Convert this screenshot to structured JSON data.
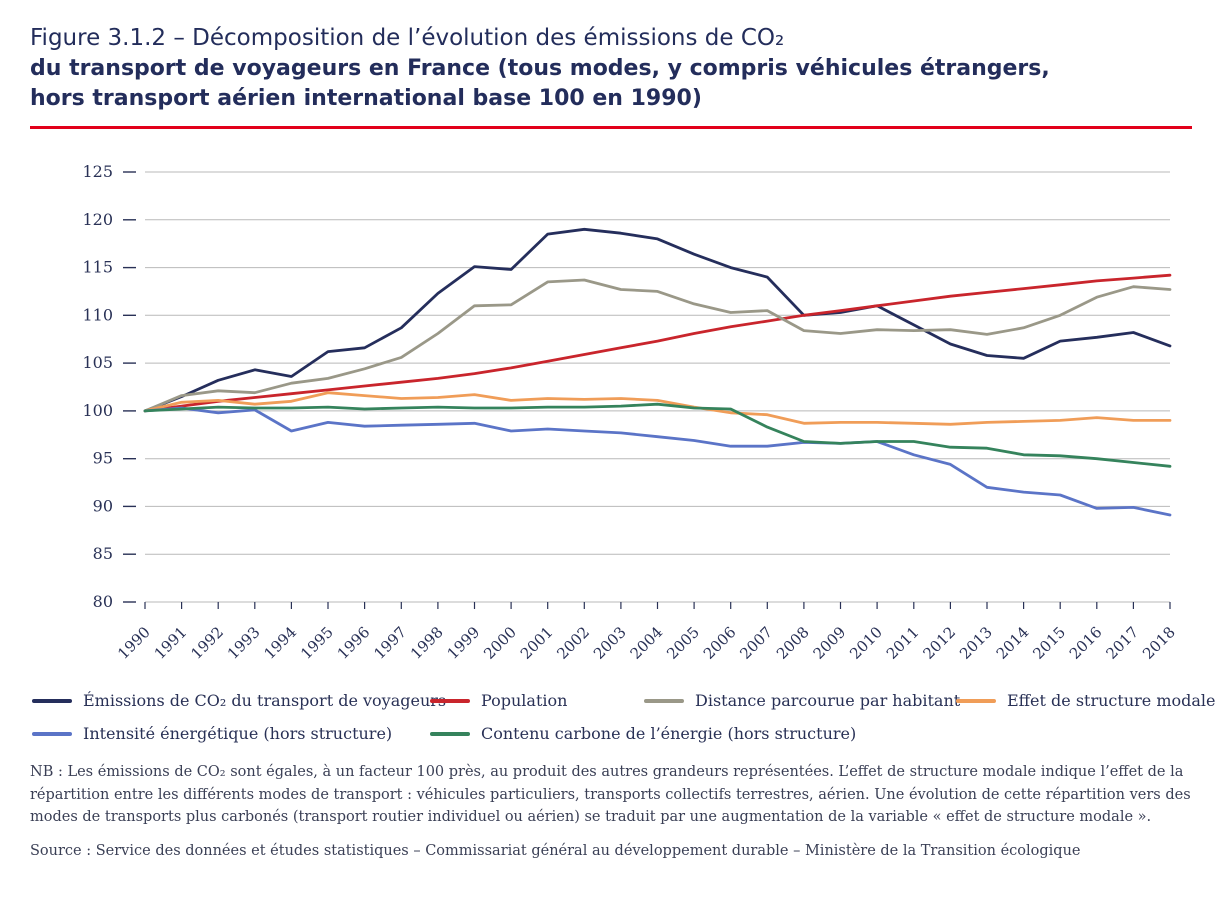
{
  "title": {
    "line1": "Figure 3.1.2 – Décomposition de l’évolution des émissions de CO₂",
    "line2": "du transport de voyageurs en France (tous modes, y compris véhicules étrangers,",
    "line3": "hors transport aérien international base 100 en 1990)"
  },
  "accent_colors": {
    "title_navy": "#232d5b",
    "rule_red": "#e2001a",
    "grid_gray": "#b9b9b9",
    "axis_text": "#293156"
  },
  "chart_data": {
    "type": "line",
    "title": "Décomposition de l’évolution des émissions de CO₂ du transport de voyageurs en France (base 100 en 1990)",
    "xlabel": "",
    "ylabel": "",
    "ylim": [
      80,
      125
    ],
    "ytick_step": 5,
    "grid": true,
    "legend_position": "bottom",
    "x": [
      1990,
      1991,
      1992,
      1993,
      1994,
      1995,
      1996,
      1997,
      1998,
      1999,
      2000,
      2001,
      2002,
      2003,
      2004,
      2005,
      2006,
      2007,
      2008,
      2009,
      2010,
      2011,
      2012,
      2013,
      2014,
      2015,
      2016,
      2017,
      2018
    ],
    "series": [
      {
        "name": "Émissions de CO₂ du transport de voyageurs",
        "color": "#252e5c",
        "values": [
          100,
          101.5,
          103.2,
          104.3,
          103.6,
          106.2,
          106.6,
          108.7,
          112.3,
          115.1,
          114.8,
          118.5,
          119.0,
          118.6,
          118.0,
          116.4,
          115.0,
          114.0,
          110.0,
          110.3,
          111.0,
          109.0,
          107.0,
          105.8,
          105.5,
          107.3,
          107.7,
          108.2,
          106.8
        ]
      },
      {
        "name": "Population",
        "color": "#c9252c",
        "values": [
          100,
          100.5,
          101.0,
          101.4,
          101.8,
          102.2,
          102.6,
          103.0,
          103.4,
          103.9,
          104.5,
          105.2,
          105.9,
          106.6,
          107.3,
          108.1,
          108.8,
          109.4,
          110.0,
          110.5,
          111.0,
          111.5,
          112.0,
          112.4,
          112.8,
          113.2,
          113.6,
          113.9,
          114.2
        ]
      },
      {
        "name": "Distance parcourue par habitant",
        "color": "#9a9888",
        "values": [
          100,
          101.6,
          102.1,
          101.9,
          102.9,
          103.4,
          104.4,
          105.6,
          108.1,
          111.0,
          111.1,
          113.5,
          113.7,
          112.7,
          112.5,
          111.2,
          110.3,
          110.5,
          108.4,
          108.1,
          108.5,
          108.4,
          108.5,
          108.0,
          108.7,
          110.0,
          111.9,
          113.0,
          112.7
        ]
      },
      {
        "name": "Effet de structure modale",
        "color": "#f09d58",
        "values": [
          100,
          100.9,
          101.1,
          100.7,
          101.0,
          101.9,
          101.6,
          101.3,
          101.4,
          101.7,
          101.1,
          101.3,
          101.2,
          101.3,
          101.1,
          100.4,
          99.8,
          99.6,
          98.7,
          98.8,
          98.8,
          98.7,
          98.6,
          98.8,
          98.9,
          99.0,
          99.3,
          99.0,
          99.0
        ]
      },
      {
        "name": "Intensité énergétique (hors structure)",
        "color": "#5b74c7",
        "values": [
          100,
          100.3,
          99.8,
          100.1,
          97.9,
          98.8,
          98.4,
          98.5,
          98.6,
          98.7,
          97.9,
          98.1,
          97.9,
          97.7,
          97.3,
          96.9,
          96.3,
          96.3,
          96.7,
          96.6,
          96.8,
          95.4,
          94.4,
          92.0,
          91.5,
          91.2,
          89.8,
          89.9,
          89.1
        ]
      },
      {
        "name": "Contenu carbone de l’énergie (hors structure)",
        "color": "#35835c",
        "values": [
          100,
          100.2,
          100.4,
          100.3,
          100.3,
          100.4,
          100.2,
          100.3,
          100.4,
          100.3,
          100.3,
          100.4,
          100.4,
          100.5,
          100.7,
          100.3,
          100.2,
          98.3,
          96.8,
          96.6,
          96.8,
          96.8,
          96.2,
          96.1,
          95.4,
          95.3,
          95.0,
          94.6,
          94.2
        ]
      }
    ]
  },
  "notes": {
    "nb": "NB : Les émissions de CO₂ sont égales, à un facteur 100 près, au produit des autres grandeurs représentées. L’effet de structure modale indique l’effet de la répartition entre les différents modes de transport : véhicules particuliers, transports collectifs terrestres, aérien. Une évolution de cette répartition vers des modes de transports plus carbonés (transport routier individuel ou aérien) se traduit par une augmentation de la variable « effet de structure modale ».",
    "source": "Source : Service des données et études statistiques – Commissariat général au développement durable – Ministère de la Transition écologique"
  }
}
